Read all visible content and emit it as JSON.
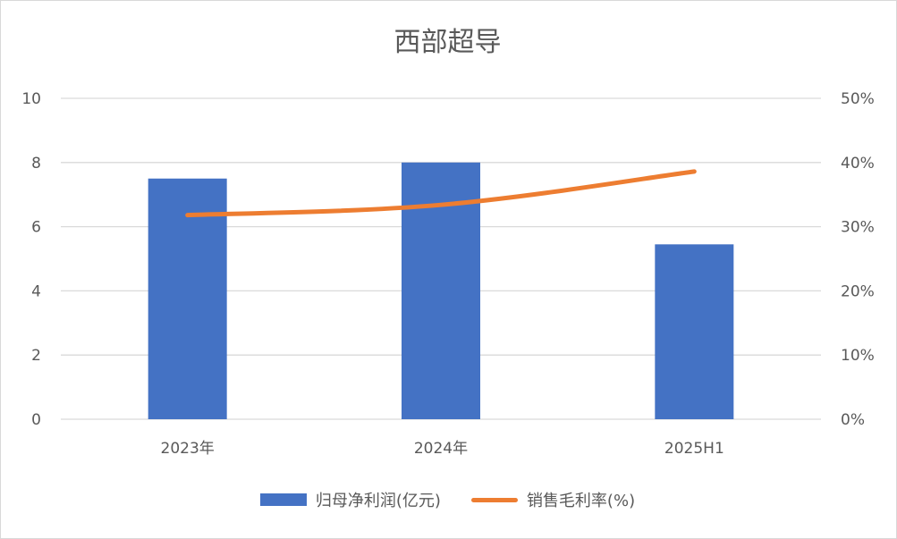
{
  "chart_data": {
    "type": "bar+line",
    "title": "西部超导",
    "categories": [
      "2023年",
      "2024年",
      "2025H1"
    ],
    "series": [
      {
        "name": "归母净利润(亿元)",
        "type": "bar",
        "axis": "left",
        "color": "#4472c4",
        "values": [
          7.5,
          8.0,
          5.45
        ]
      },
      {
        "name": "销售毛利率(%)",
        "type": "line",
        "axis": "right",
        "color": "#ed7d31",
        "values": [
          31.8,
          33.4,
          38.6
        ]
      }
    ],
    "y_left": {
      "ylim": [
        0,
        10
      ],
      "ticks": [
        "0",
        "2",
        "4",
        "6",
        "8",
        "10"
      ]
    },
    "y_right": {
      "ylim": [
        0,
        50
      ],
      "ticks": [
        "0%",
        "10%",
        "20%",
        "30%",
        "40%",
        "50%"
      ]
    },
    "grid": true,
    "legend_position": "bottom"
  }
}
